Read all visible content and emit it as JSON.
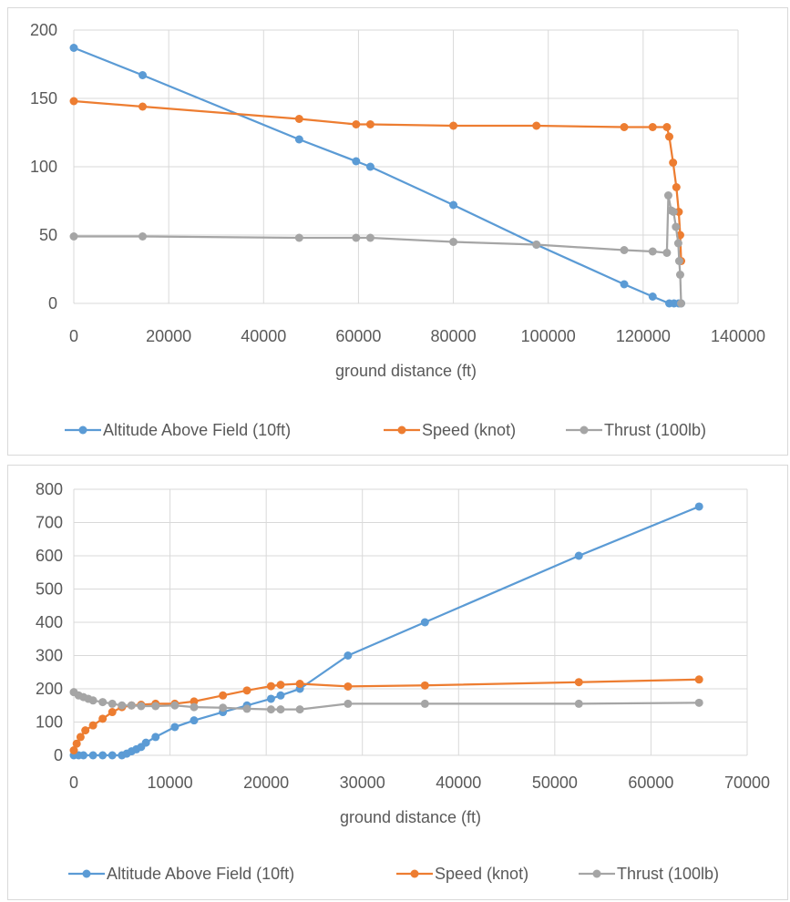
{
  "chart_data": [
    {
      "type": "line",
      "title": "",
      "xlabel": "ground distance (ft)",
      "ylabel": "",
      "xlim": [
        0,
        140000
      ],
      "ylim": [
        0,
        200
      ],
      "x_ticks": [
        0,
        20000,
        40000,
        60000,
        80000,
        100000,
        120000,
        140000
      ],
      "y_ticks": [
        0,
        50,
        100,
        150,
        200
      ],
      "grid": true,
      "legend_position": "bottom",
      "series": [
        {
          "name": "Altitude Above Field (10ft)",
          "color": "#5b9bd5",
          "points": [
            [
              0,
              187
            ],
            [
              14500,
              167
            ],
            [
              47500,
              120
            ],
            [
              59500,
              104
            ],
            [
              62500,
              100
            ],
            [
              80000,
              72
            ],
            [
              97500,
              43
            ],
            [
              116000,
              14
            ],
            [
              122000,
              5
            ],
            [
              125500,
              0
            ],
            [
              126500,
              0
            ],
            [
              127500,
              0
            ],
            [
              128000,
              0
            ]
          ]
        },
        {
          "name": "Speed (knot)",
          "color": "#ed7d31",
          "points": [
            [
              0,
              148
            ],
            [
              14500,
              144
            ],
            [
              47500,
              135
            ],
            [
              59500,
              131
            ],
            [
              62500,
              131
            ],
            [
              80000,
              130
            ],
            [
              97500,
              130
            ],
            [
              116000,
              129
            ],
            [
              122000,
              129
            ],
            [
              125000,
              129
            ],
            [
              125500,
              122
            ],
            [
              126300,
              103
            ],
            [
              127000,
              85
            ],
            [
              127500,
              67
            ],
            [
              127800,
              50
            ],
            [
              128000,
              31
            ]
          ]
        },
        {
          "name": "Thrust (100lb)",
          "color": "#a5a5a5",
          "points": [
            [
              0,
              49
            ],
            [
              14500,
              49
            ],
            [
              47500,
              48
            ],
            [
              59500,
              48
            ],
            [
              62500,
              48
            ],
            [
              80000,
              45
            ],
            [
              97500,
              43
            ],
            [
              116000,
              39
            ],
            [
              122000,
              38
            ],
            [
              125000,
              37
            ],
            [
              125300,
              79
            ],
            [
              125900,
              68
            ],
            [
              126400,
              67
            ],
            [
              126900,
              56
            ],
            [
              127400,
              44
            ],
            [
              127600,
              31
            ],
            [
              127800,
              21
            ],
            [
              128000,
              0
            ]
          ]
        }
      ]
    },
    {
      "type": "line",
      "title": "",
      "xlabel": "ground distance (ft)",
      "ylabel": "",
      "xlim": [
        0,
        70000
      ],
      "ylim": [
        0,
        800
      ],
      "x_ticks": [
        0,
        10000,
        20000,
        30000,
        40000,
        50000,
        60000,
        70000
      ],
      "y_ticks": [
        0,
        100,
        200,
        300,
        400,
        500,
        600,
        700,
        800
      ],
      "grid": true,
      "legend_position": "bottom",
      "series": [
        {
          "name": "Altitude Above Field  (10ft)",
          "color": "#5b9bd5",
          "points": [
            [
              0,
              0
            ],
            [
              500,
              0
            ],
            [
              1000,
              0
            ],
            [
              2000,
              0
            ],
            [
              3000,
              0
            ],
            [
              4000,
              0
            ],
            [
              5000,
              0
            ],
            [
              5500,
              5
            ],
            [
              6000,
              12
            ],
            [
              6500,
              18
            ],
            [
              7000,
              25
            ],
            [
              7500,
              38
            ],
            [
              8500,
              55
            ],
            [
              10500,
              85
            ],
            [
              12500,
              105
            ],
            [
              15500,
              130
            ],
            [
              18000,
              150
            ],
            [
              20500,
              170
            ],
            [
              21500,
              180
            ],
            [
              23500,
              200
            ],
            [
              28500,
              300
            ],
            [
              36500,
              400
            ],
            [
              52500,
              600
            ],
            [
              65000,
              748
            ]
          ]
        },
        {
          "name": "Speed (knot)",
          "color": "#ed7d31",
          "points": [
            [
              0,
              15
            ],
            [
              300,
              35
            ],
            [
              700,
              55
            ],
            [
              1200,
              75
            ],
            [
              2000,
              90
            ],
            [
              3000,
              110
            ],
            [
              4000,
              130
            ],
            [
              5000,
              145
            ],
            [
              6000,
              150
            ],
            [
              7000,
              152
            ],
            [
              8500,
              155
            ],
            [
              10500,
              155
            ],
            [
              12500,
              162
            ],
            [
              15500,
              180
            ],
            [
              18000,
              195
            ],
            [
              20500,
              208
            ],
            [
              21500,
              212
            ],
            [
              23500,
              215
            ],
            [
              28500,
              207
            ],
            [
              36500,
              210
            ],
            [
              52500,
              220
            ],
            [
              65000,
              228
            ]
          ]
        },
        {
          "name": "Thrust (100lb)",
          "color": "#a5a5a5",
          "points": [
            [
              0,
              190
            ],
            [
              500,
              180
            ],
            [
              1000,
              175
            ],
            [
              1500,
              170
            ],
            [
              2000,
              165
            ],
            [
              3000,
              160
            ],
            [
              4000,
              155
            ],
            [
              5000,
              150
            ],
            [
              6000,
              150
            ],
            [
              7000,
              148
            ],
            [
              8500,
              148
            ],
            [
              10500,
              150
            ],
            [
              12500,
              145
            ],
            [
              15500,
              143
            ],
            [
              18000,
              140
            ],
            [
              20500,
              138
            ],
            [
              21500,
              138
            ],
            [
              23500,
              138
            ],
            [
              28500,
              155
            ],
            [
              36500,
              155
            ],
            [
              52500,
              155
            ],
            [
              65000,
              158
            ]
          ]
        }
      ]
    }
  ]
}
